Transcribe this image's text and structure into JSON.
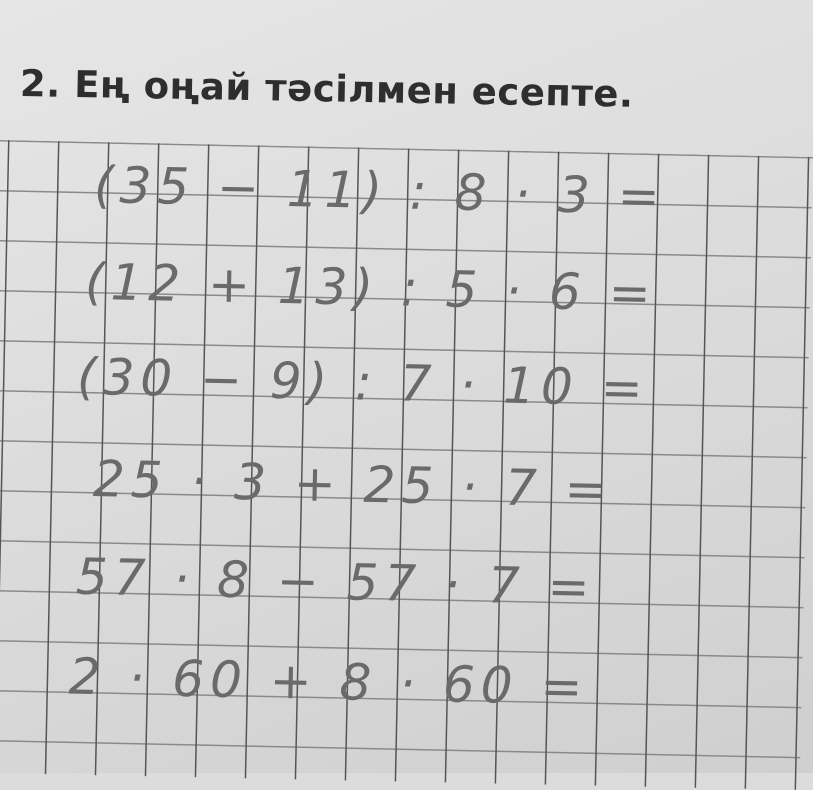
{
  "exercise": {
    "title": "2. Ең оңай тәсілмен есепте.",
    "expressions": [
      "(35 − 11) : 8 · 3 =",
      "(12 + 13) : 5 · 6 =",
      "(30 − 9) : 7 · 10 =",
      "25 · 3 + 25 · 7 =",
      "57 · 8 − 57 · 7 =",
      "2 · 60 + 8 · 60 ="
    ]
  }
}
